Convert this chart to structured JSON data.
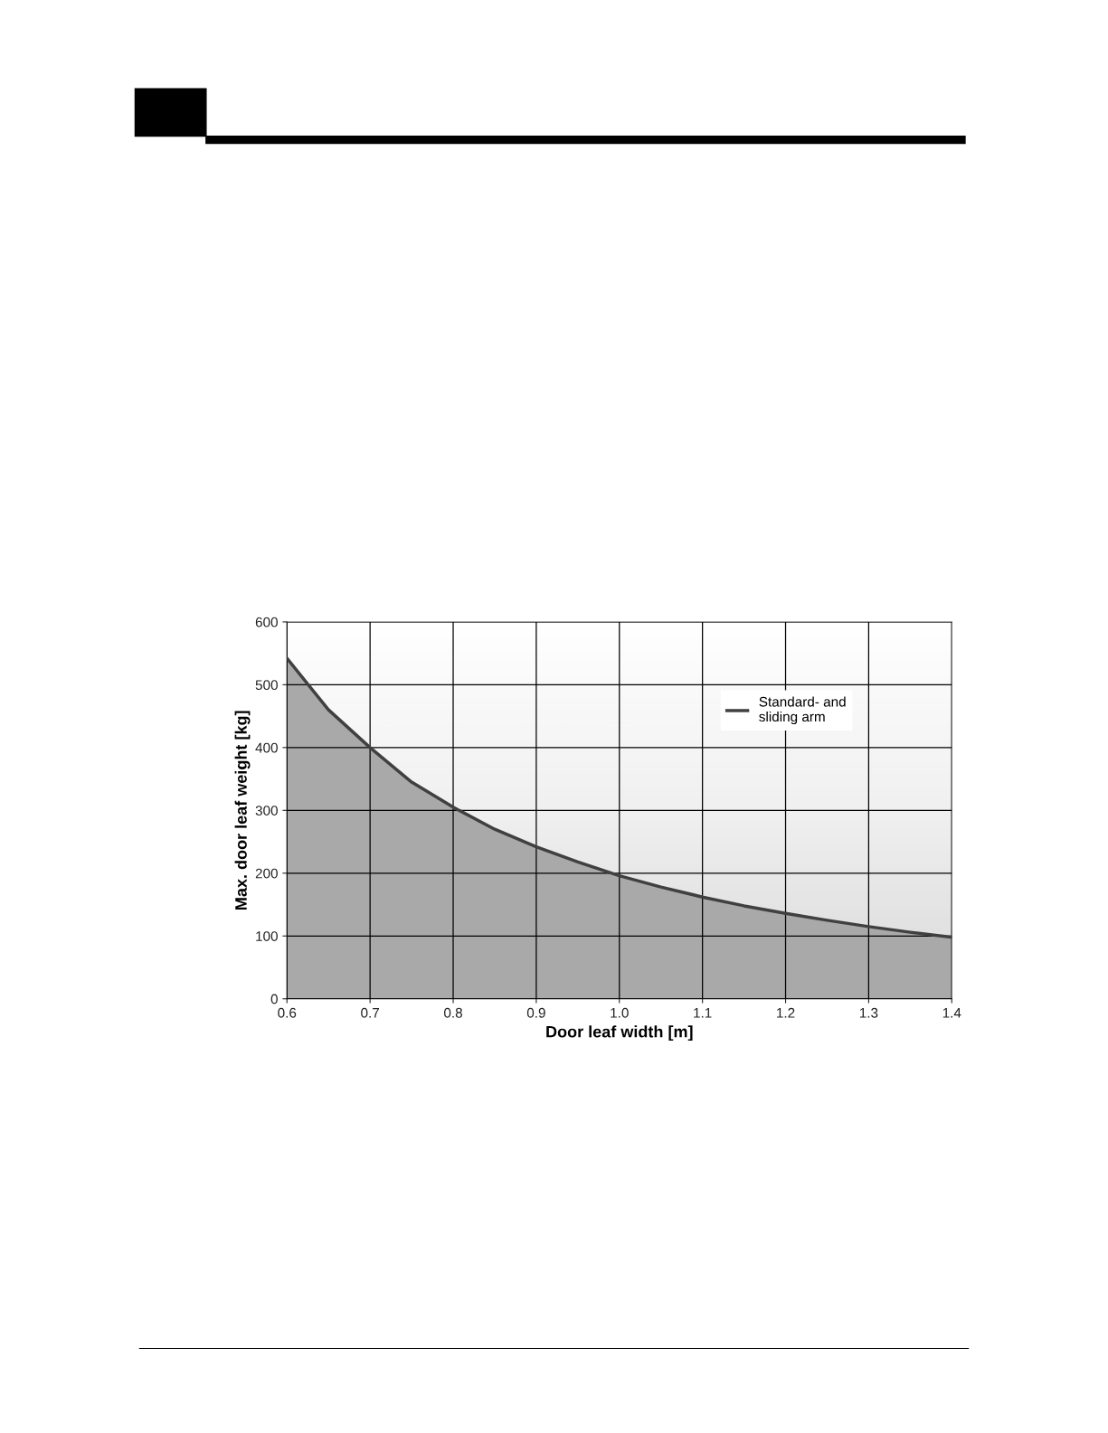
{
  "chart_data": {
    "type": "area",
    "xlabel": "Door leaf width [m]",
    "ylabel": "Max. door leaf weight [kg]",
    "x": [
      0.6,
      0.65,
      0.7,
      0.75,
      0.8,
      0.85,
      0.9,
      0.95,
      1.0,
      1.05,
      1.1,
      1.15,
      1.2,
      1.25,
      1.3,
      1.35,
      1.4
    ],
    "series": [
      {
        "name": "Standard- and\nsliding arm",
        "color": "#404040",
        "values": [
          542,
          460,
          400,
          345,
          305,
          270,
          242,
          218,
          196,
          178,
          162,
          148,
          136,
          125,
          115,
          106,
          98
        ]
      }
    ],
    "xlim": [
      0.6,
      1.4
    ],
    "xticks": [
      0.6,
      0.7,
      0.8,
      0.9,
      {
        "value": 1.0,
        "label": "1.0"
      },
      1.1,
      1.2,
      1.3,
      1.4
    ],
    "ylim": [
      0,
      600
    ],
    "yticks": [
      0,
      100,
      200,
      300,
      400,
      500,
      600
    ],
    "grid": true,
    "legend": "top right",
    "marker": "none",
    "line_style": "solid"
  }
}
